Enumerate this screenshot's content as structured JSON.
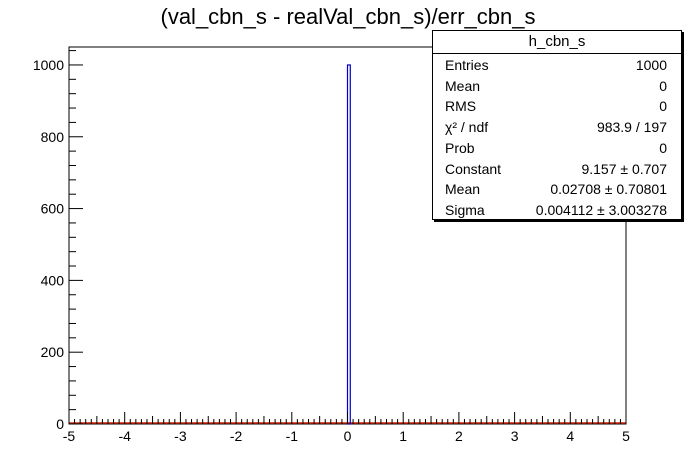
{
  "chart_data": {
    "type": "bar",
    "title": "(val_cbn_s - realVal_cbn_s)/err_cbn_s",
    "xlabel": "",
    "ylabel": "",
    "xlim": [
      -5,
      5
    ],
    "ylim": [
      0,
      1050
    ],
    "x_ticks": [
      "-5",
      "-4",
      "-3",
      "-2",
      "-1",
      "0",
      "1",
      "2",
      "3",
      "4",
      "5"
    ],
    "y_ticks": [
      "0",
      "200",
      "400",
      "600",
      "800",
      "1000"
    ],
    "bin_width": 0.05,
    "series": [
      {
        "bins": [
          {
            "x_low": 0.0,
            "x_high": 0.05,
            "count": 1000
          }
        ],
        "color": "#0000cc"
      }
    ],
    "fit": {
      "color": "#cc2200",
      "level": 0
    }
  },
  "stats_box": {
    "title": "h_cbn_s",
    "rows": [
      {
        "label": "Entries",
        "value": "1000"
      },
      {
        "label": "Mean",
        "value": "0"
      },
      {
        "label": "RMS",
        "value": "0"
      },
      {
        "label": "χ² / ndf",
        "value": "983.9 / 197"
      },
      {
        "label": "Prob",
        "value": "0"
      },
      {
        "label": "Constant",
        "value": "9.157  ± 0.707"
      },
      {
        "label": "Mean",
        "value": "0.02708  ± 0.70801"
      },
      {
        "label": "Sigma",
        "value": "0.004112  ± 3.003278"
      }
    ]
  }
}
